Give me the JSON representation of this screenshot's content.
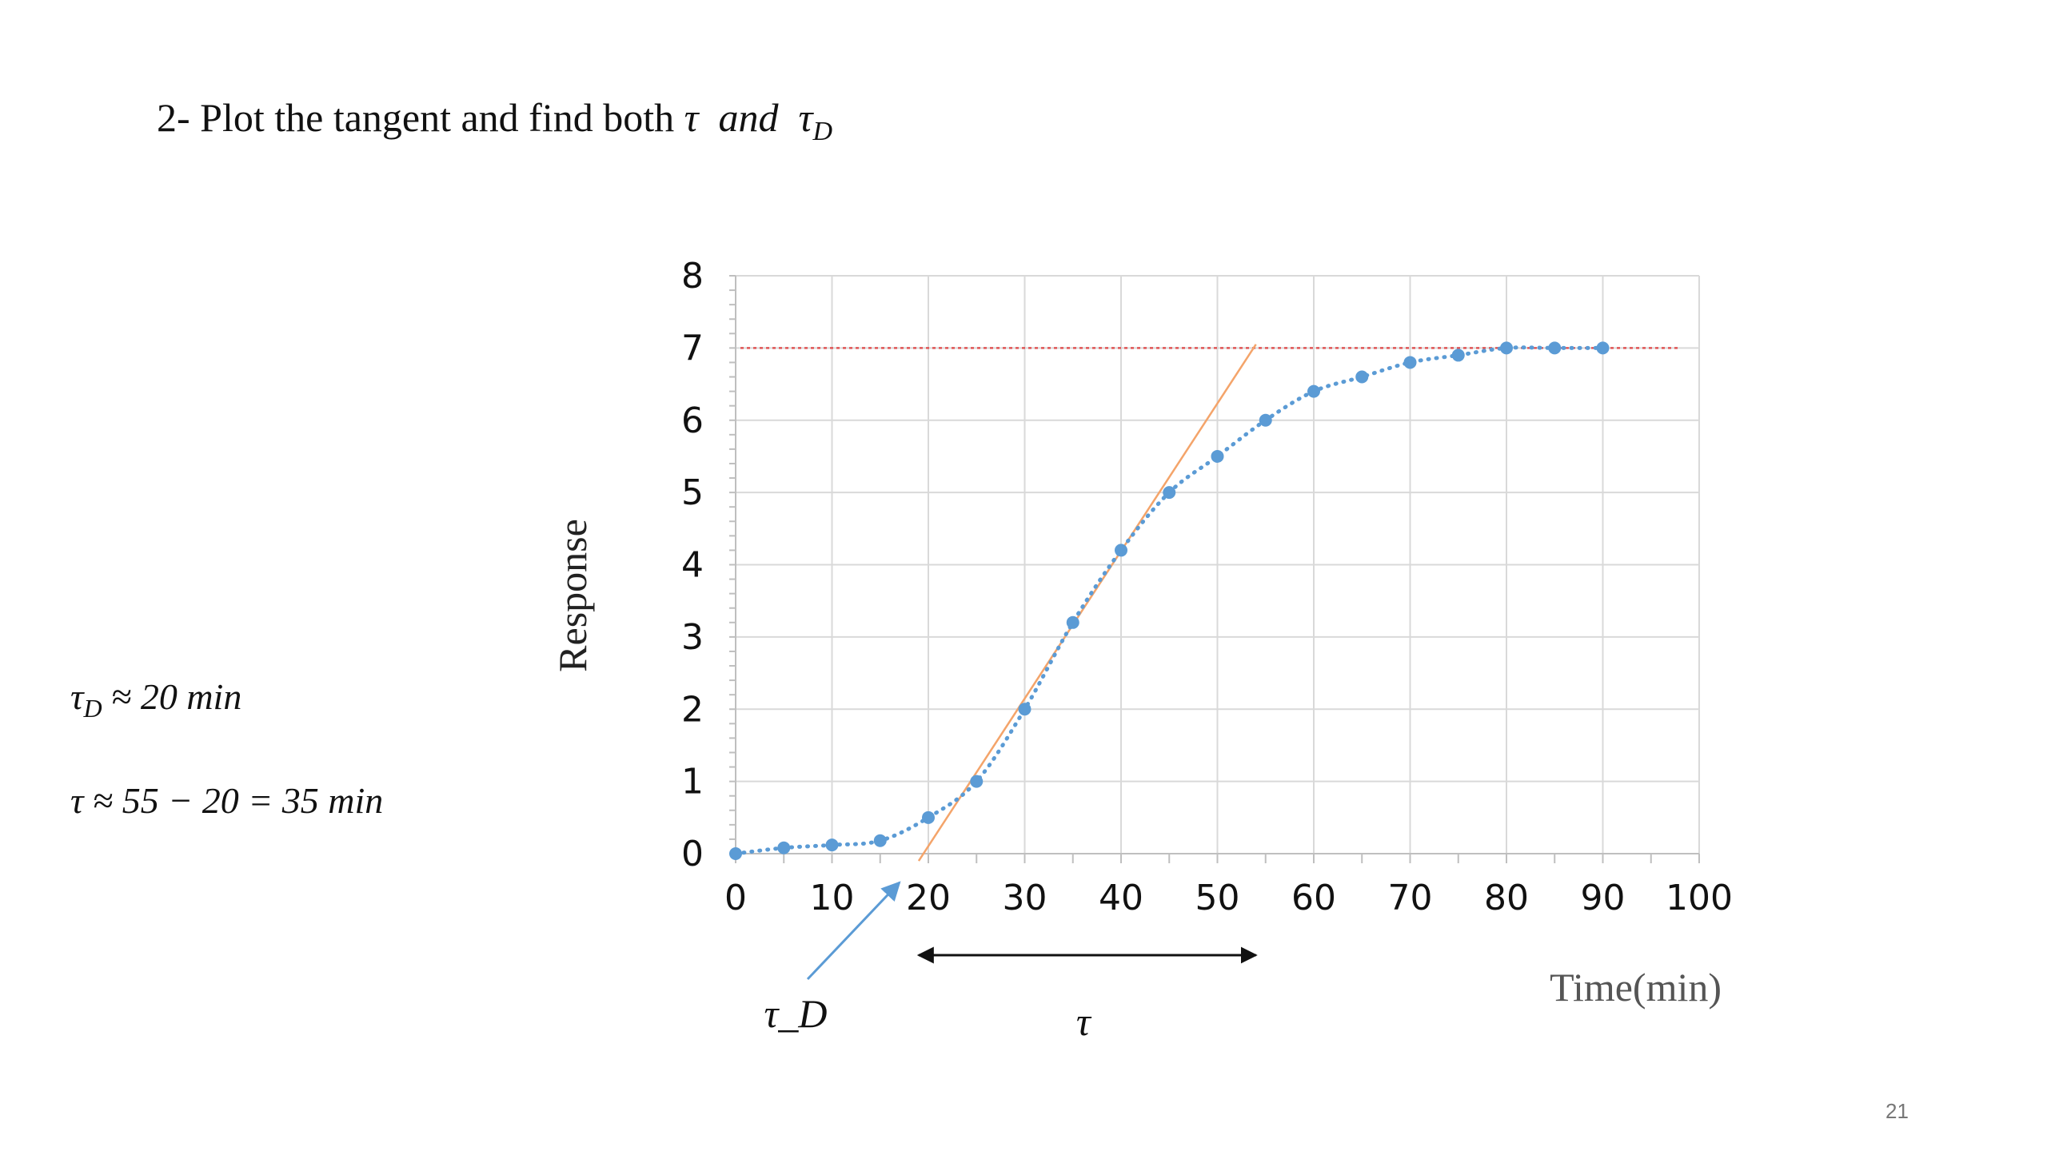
{
  "slide": {
    "heading_prefix": "2- Plot the tangent and find both ",
    "heading_tau": "τ",
    "heading_and": "and",
    "heading_tau_d": "τ",
    "heading_tau_d_sub": "D",
    "eq_td_sym": "τ",
    "eq_td_sub": "D",
    "eq_td_rest": " ≈ 20 min",
    "eq_tau": "τ ≈ 55 − 20 = 35 min",
    "page_number": "21"
  },
  "chart_data": {
    "type": "scatter",
    "xlabel": "Time(min)",
    "ylabel": "Response",
    "xlim": [
      0,
      100
    ],
    "ylim": [
      0,
      8
    ],
    "x_ticks": [
      0,
      10,
      20,
      30,
      40,
      50,
      60,
      70,
      80,
      90,
      100
    ],
    "y_ticks": [
      0,
      1,
      2,
      3,
      4,
      5,
      6,
      7,
      8
    ],
    "grid": true,
    "series": [
      {
        "x": [
          0,
          5,
          10,
          15,
          20,
          25,
          30,
          35,
          40,
          45,
          50,
          55,
          60,
          65,
          70,
          75,
          80,
          85,
          90
        ],
        "y": [
          0,
          0.08,
          0.12,
          0.18,
          0.5,
          1.0,
          2.0,
          3.2,
          4.2,
          5.0,
          5.5,
          6.0,
          6.4,
          6.6,
          6.8,
          6.9,
          7.0,
          7.0,
          7.0
        ],
        "color": "#5b9bd5",
        "style": "markers with dotted smooth trendline"
      }
    ],
    "reference_lines": [
      {
        "kind": "horizontal",
        "y": 7.0,
        "x_range": [
          0.5,
          98
        ],
        "color": "#e05555",
        "style": "dotted"
      },
      {
        "kind": "tangent",
        "from": [
          19,
          -0.1
        ],
        "to": [
          54,
          7.05
        ],
        "color": "#f4a46a"
      }
    ],
    "annotations": {
      "tau_d_label": "τ_D",
      "tau_label": "τ",
      "tau_span": [
        19,
        54
      ],
      "tau_d_arrow_tip": [
        17,
        -0.4
      ],
      "colors": {
        "tau_d_arrow": "#5b9bd5",
        "tau_arrow": "#111111"
      }
    }
  }
}
